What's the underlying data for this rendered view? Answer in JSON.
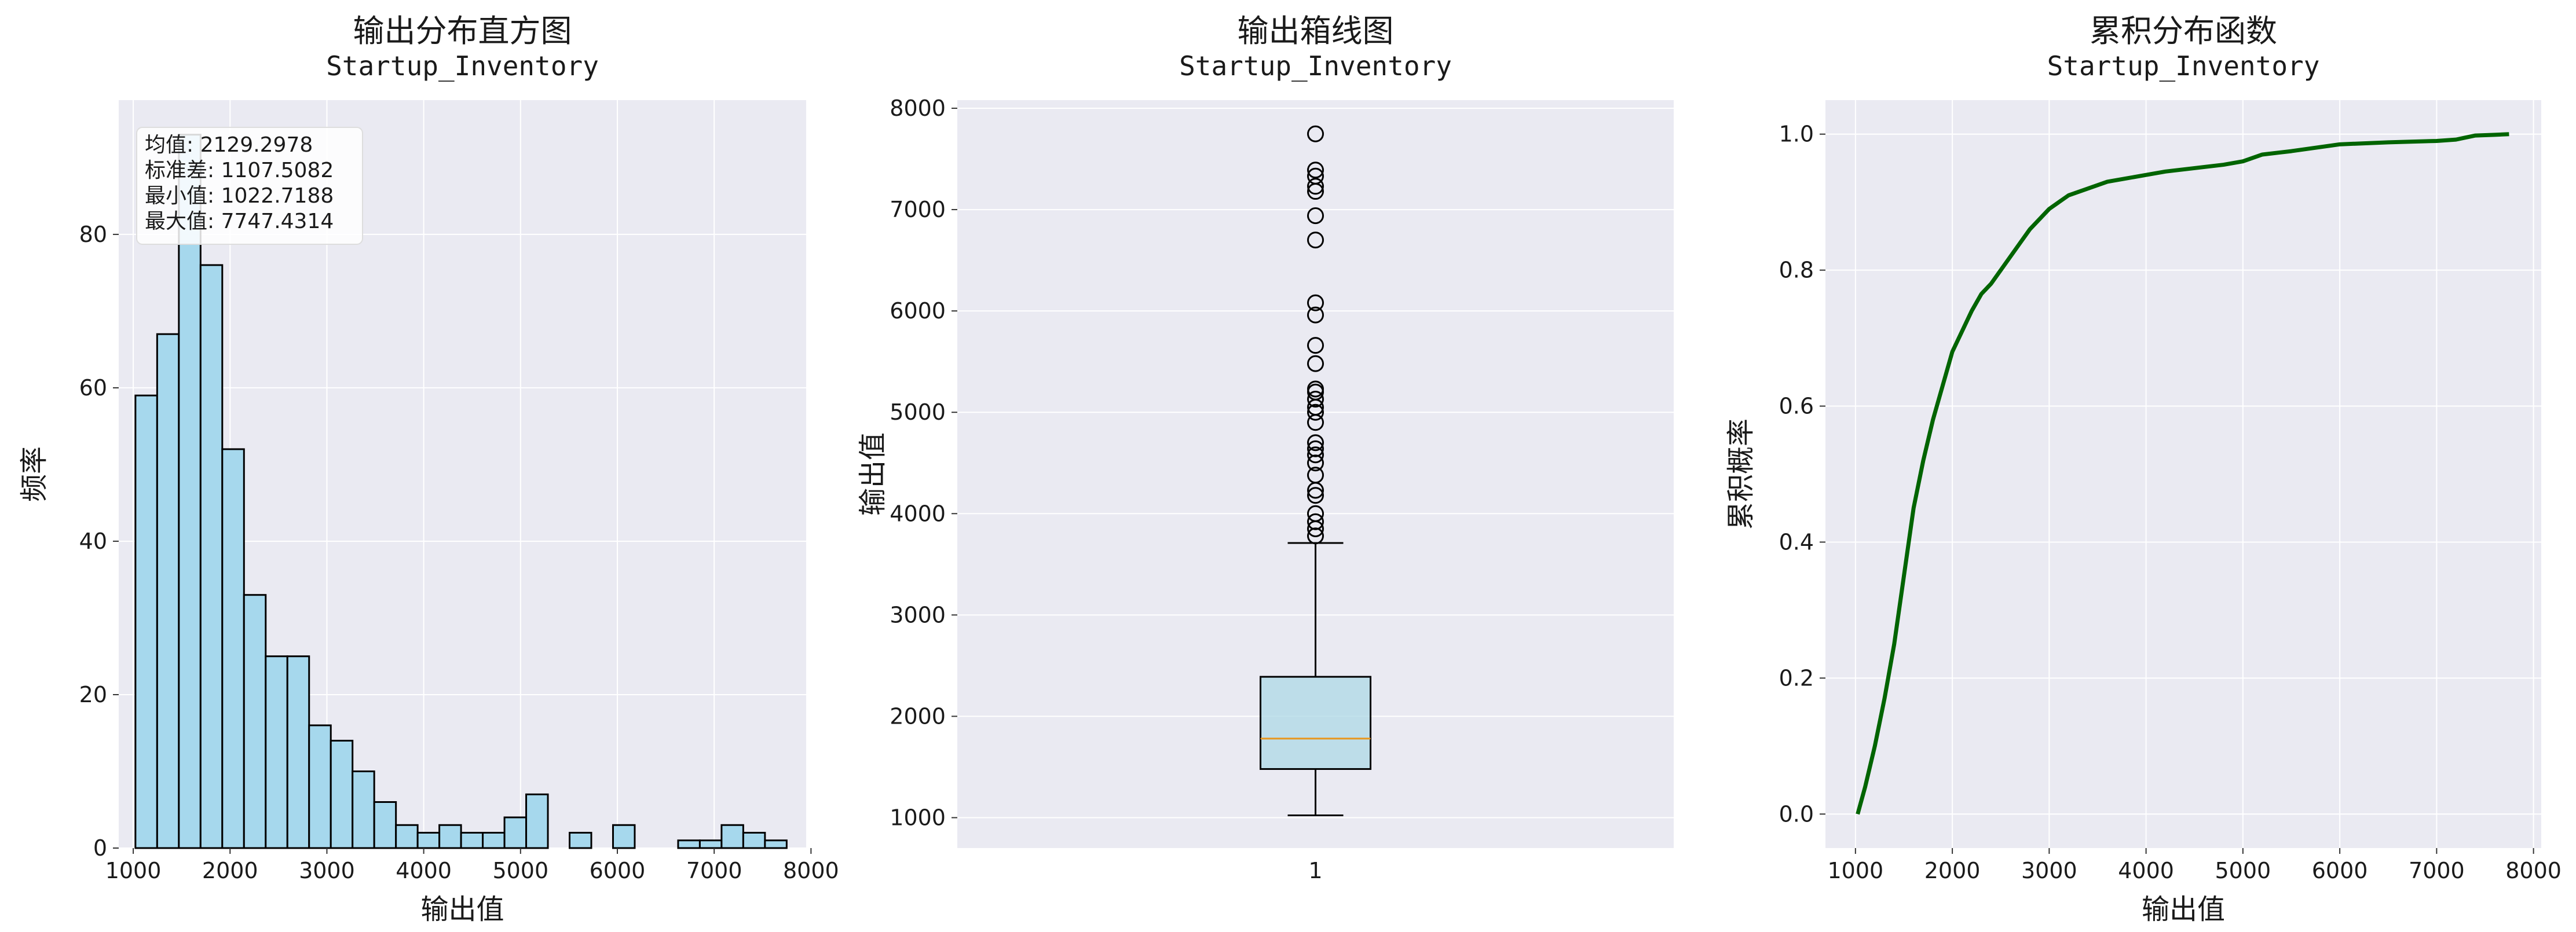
{
  "chart_data": [
    {
      "type": "bar",
      "title": "输出分布直方图",
      "subtitle": "Startup_Inventory",
      "xlabel": "输出值",
      "ylabel": "频率",
      "xlim": [
        850,
        7950
      ],
      "ylim": [
        0,
        97.5
      ],
      "xticks": [
        1000,
        2000,
        3000,
        4000,
        5000,
        6000,
        7000,
        8000
      ],
      "yticks": [
        0,
        20,
        40,
        60,
        80
      ],
      "bin_edges": [
        1022.7,
        1246.9,
        1471.1,
        1695.3,
        1919.5,
        2143.7,
        2367.9,
        2592.1,
        2816.3,
        3040.5,
        3264.7,
        3488.9,
        3713.1,
        3937.3,
        4161.5,
        4385.7,
        4609.9,
        4834.1,
        5058.3,
        5282.5,
        5506.7,
        5730.9,
        5955.1,
        6179.3,
        6403.5,
        6627.7,
        6851.9,
        7076.1,
        7300.3,
        7524.5,
        7748.7
      ],
      "counts": [
        59,
        67,
        93,
        76,
        52,
        33,
        25,
        25,
        16,
        14,
        10,
        6,
        3,
        2,
        3,
        2,
        2,
        4,
        7,
        0,
        2,
        0,
        3,
        0,
        0,
        1,
        1,
        3,
        2,
        1
      ],
      "bar_color": "#a6d8ed",
      "edge_color": "#000000",
      "grid": true,
      "stats_box": {
        "position": "top-left",
        "lines": [
          "均值: 2129.2978",
          "标准差: 1107.5082",
          "最小值: 1022.7188",
          "最大值: 7747.4314"
        ]
      }
    },
    {
      "type": "box",
      "title": "输出箱线图",
      "subtitle": "Startup_Inventory",
      "xlabel": "",
      "ylabel": "输出值",
      "categories": [
        "1"
      ],
      "ylim": [
        700,
        8080
      ],
      "yticks": [
        1000,
        2000,
        3000,
        4000,
        5000,
        6000,
        7000,
        8000
      ],
      "box": {
        "whisker_low": 1022.7,
        "q1": 1480,
        "median": 1780,
        "q3": 2390,
        "whisker_high": 3710
      },
      "outliers": [
        3780,
        3850,
        3920,
        4000,
        4180,
        4230,
        4380,
        4500,
        4580,
        4640,
        4700,
        4900,
        5000,
        5050,
        5130,
        5200,
        5230,
        5480,
        5660,
        5960,
        6080,
        6700,
        6940,
        7180,
        7230,
        7330,
        7390,
        7747.4
      ],
      "box_color": "#add8e6",
      "median_color": "#e8961e",
      "grid": true
    },
    {
      "type": "line",
      "title": "累积分布函数",
      "subtitle": "Startup_Inventory",
      "xlabel": "输出值",
      "ylabel": "累积概率",
      "xlim": [
        690,
        8080
      ],
      "ylim": [
        -0.05,
        1.05
      ],
      "xticks": [
        1000,
        2000,
        3000,
        4000,
        5000,
        6000,
        7000,
        8000
      ],
      "yticks": [
        0.0,
        0.2,
        0.4,
        0.6,
        0.8,
        1.0
      ],
      "ytick_labels": [
        "0.0",
        "0.2",
        "0.4",
        "0.6",
        "0.8",
        "1.0"
      ],
      "line_color": "#006400",
      "grid": true,
      "x": [
        1022.7,
        1100,
        1200,
        1300,
        1400,
        1500,
        1600,
        1700,
        1800,
        1900,
        2000,
        2100,
        2200,
        2300,
        2400,
        2500,
        2600,
        2700,
        2800,
        2900,
        3000,
        3200,
        3400,
        3600,
        3800,
        4000,
        4200,
        4500,
        4800,
        5000,
        5200,
        5500,
        6000,
        6500,
        7000,
        7200,
        7300,
        7400,
        7600,
        7747.4
      ],
      "y": [
        0.0,
        0.04,
        0.1,
        0.17,
        0.25,
        0.35,
        0.45,
        0.52,
        0.58,
        0.63,
        0.68,
        0.71,
        0.74,
        0.765,
        0.78,
        0.8,
        0.82,
        0.84,
        0.86,
        0.875,
        0.89,
        0.91,
        0.92,
        0.93,
        0.935,
        0.94,
        0.945,
        0.95,
        0.955,
        0.96,
        0.97,
        0.975,
        0.985,
        0.988,
        0.99,
        0.992,
        0.995,
        0.998,
        0.999,
        1.0
      ]
    }
  ]
}
